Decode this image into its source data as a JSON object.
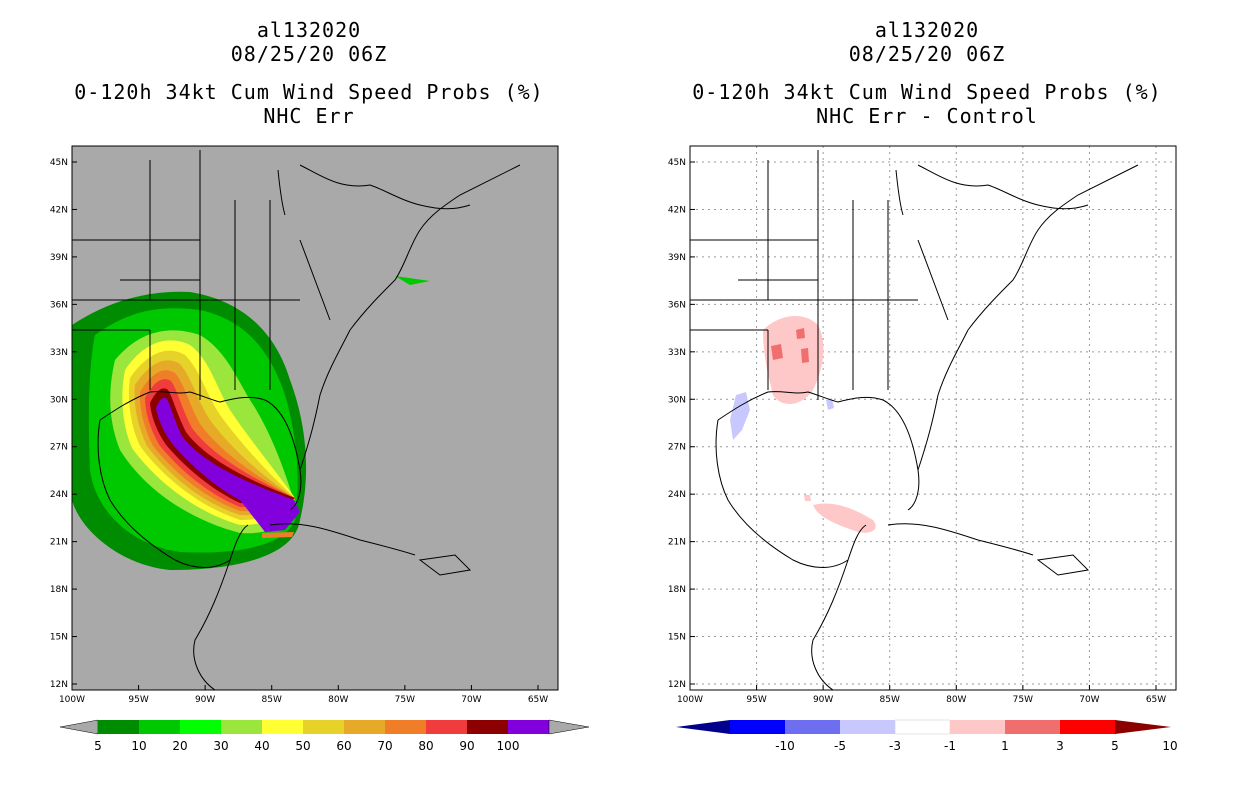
{
  "panels": [
    {
      "storm_id": "al132020",
      "datetime": "08/25/20 06Z",
      "title": "0-120h 34kt Cum Wind Speed Probs (%)",
      "subtitle": "NHC Err",
      "background": "#a9a9a9",
      "lat_labels": [
        "45N",
        "42N",
        "39N",
        "36N",
        "33N",
        "30N",
        "27N",
        "24N",
        "21N",
        "18N",
        "15N",
        "12N"
      ],
      "lon_labels": [
        "100W",
        "95W",
        "90W",
        "85W",
        "80W",
        "75W",
        "70W",
        "65W"
      ],
      "colorbar": {
        "labels": [
          "5",
          "10",
          "20",
          "30",
          "40",
          "50",
          "60",
          "70",
          "80",
          "90",
          "100"
        ],
        "colors": [
          "#008c00",
          "#00c800",
          "#00ff00",
          "#9ae63c",
          "#ffff33",
          "#e6d228",
          "#e6aa28",
          "#f07d28",
          "#f03c3c",
          "#8c0000",
          "#8200dc"
        ]
      }
    },
    {
      "storm_id": "al132020",
      "datetime": "08/25/20 06Z",
      "title": "0-120h 34kt Cum Wind Speed Probs (%)",
      "subtitle": "NHC Err - Control",
      "background": "#ffffff",
      "lat_labels": [
        "45N",
        "42N",
        "39N",
        "36N",
        "33N",
        "30N",
        "27N",
        "24N",
        "21N",
        "18N",
        "15N",
        "12N"
      ],
      "lon_labels": [
        "100W",
        "95W",
        "90W",
        "85W",
        "80W",
        "75W",
        "70W",
        "65W"
      ],
      "colorbar": {
        "labels": [
          "-10",
          "-5",
          "-3",
          "-1",
          "1",
          "3",
          "5",
          "10"
        ],
        "colors": [
          "#00008c",
          "#0000ff",
          "#6e6ef0",
          "#c8c8ff",
          "#ffffff",
          "#ffc8c8",
          "#f06e6e",
          "#ff0000",
          "#8c0000"
        ]
      }
    }
  ]
}
